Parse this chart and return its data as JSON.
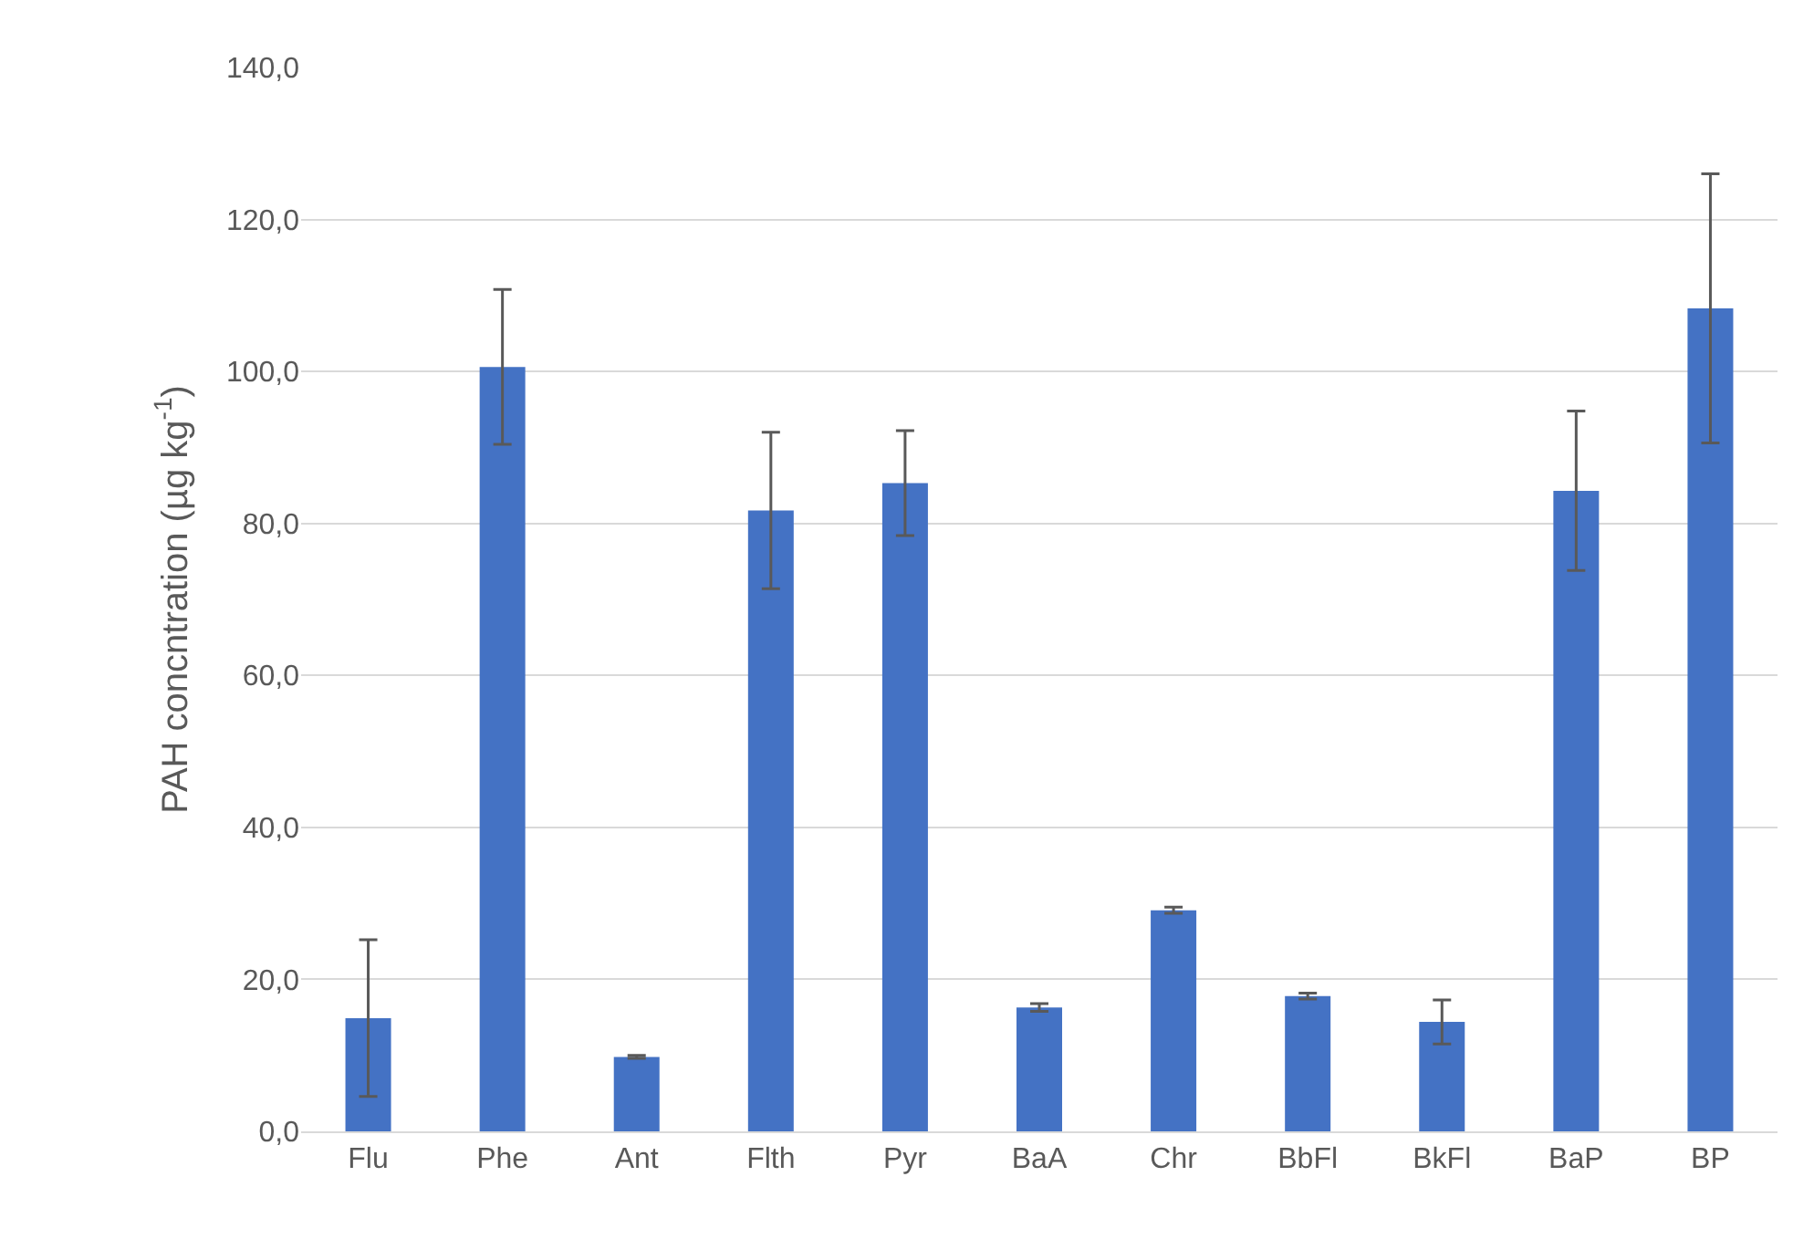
{
  "chart_data": {
    "type": "bar",
    "ylabel": "PAH concntration (µg kg$^{-1}$)",
    "categories": [
      "Flu",
      "Phe",
      "Ant",
      "Flth",
      "Pyr",
      "BaA",
      "Chr",
      "BbFl",
      "BkFl",
      "BaP",
      "BP"
    ],
    "values": [
      14.9,
      100.6,
      9.8,
      81.7,
      85.3,
      16.3,
      29.1,
      17.8,
      14.4,
      84.3,
      108.3
    ],
    "errors": [
      10.3,
      10.2,
      0.2,
      10.3,
      6.9,
      0.5,
      0.4,
      0.4,
      2.9,
      10.5,
      17.7
    ],
    "color": "#4472c4",
    "ylim": [
      0,
      140
    ],
    "yticks": [
      {
        "value": 0,
        "label": "0,0"
      },
      {
        "value": 20,
        "label": "20,0"
      },
      {
        "value": 40,
        "label": "40,0"
      },
      {
        "value": 60,
        "label": "60,0"
      },
      {
        "value": 80,
        "label": "80,0"
      },
      {
        "value": 100,
        "label": "100,0"
      },
      {
        "value": 120,
        "label": "120,0"
      },
      {
        "value": 140,
        "label": "140,0"
      }
    ],
    "grid": "y",
    "legend": false
  }
}
